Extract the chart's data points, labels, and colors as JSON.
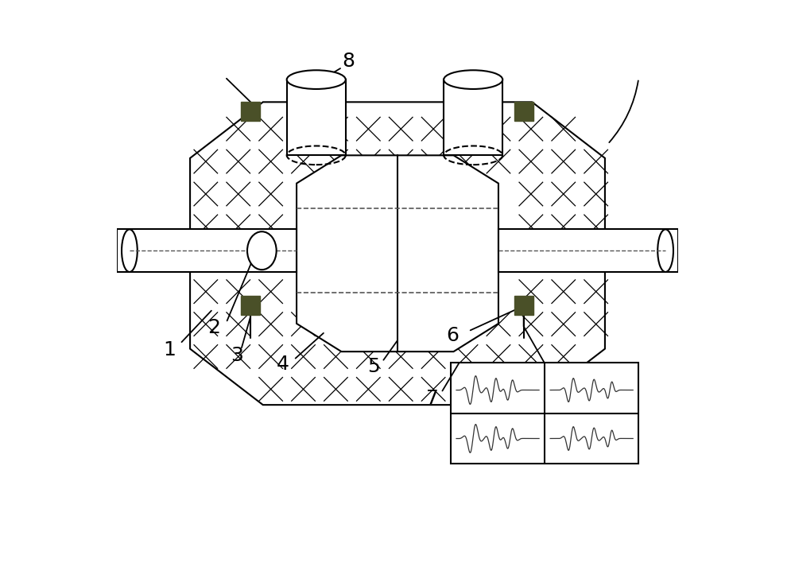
{
  "bg_color": "#ffffff",
  "line_color": "#000000",
  "dark_olive": "#4a5028",
  "dashed_color": "#555555",
  "label_color": "#000000",
  "fig_width": 10.0,
  "fig_height": 7.08,
  "label_fontsize": 18
}
